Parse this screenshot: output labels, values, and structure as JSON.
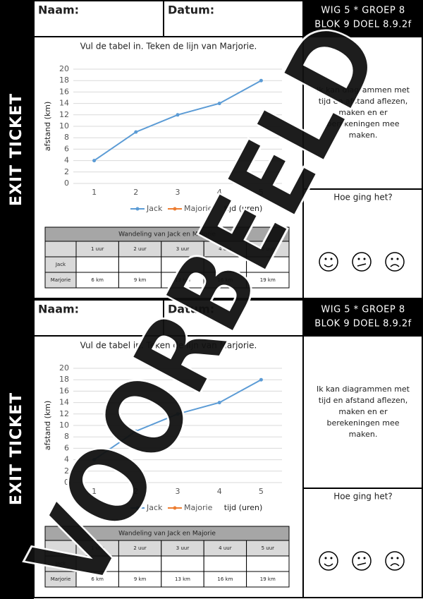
{
  "tickets": [
    {
      "exit_label": "EXIT TICKET",
      "name_label": "Naam:",
      "date_label": "Datum:",
      "code_lines": [
        "WIG 5 * GROEP 8",
        "BLOK 9 DOEL 8.9.2f"
      ],
      "goal_lines": [
        "Ik kan diagrammen met",
        "tijd en afstand aflezen,",
        "maken en er",
        "berekeningen mee",
        "maken."
      ],
      "feeling": "Hoe ging het?",
      "chart": {
        "type": "line",
        "title": "Vul de tabel in. Teken de lijn van Marjorie.",
        "categories": [
          1,
          2,
          3,
          4,
          5
        ],
        "series": [
          {
            "name": "Jack",
            "color": "#5b9bd5",
            "values": [
              4,
              9,
              12,
              14,
              18
            ]
          },
          {
            "name": "Majorie",
            "color": "#ed7d31",
            "values": [
              null,
              null,
              null,
              null,
              null
            ]
          }
        ],
        "ylim": [
          0,
          20
        ],
        "yticks": [
          0,
          2,
          4,
          6,
          8,
          10,
          12,
          14,
          16,
          18,
          20
        ],
        "grid": true,
        "y_label": "afstand (km)",
        "x_label": "tijd (uren)"
      },
      "table": {
        "title": "Wandeling van Jack en Majorie",
        "columns": [
          "1 uur",
          "2 uur",
          "3 uur",
          "4 uur",
          "5 uur"
        ],
        "rows": [
          {
            "label": "Jack"
          },
          {
            "label": "Marjorie",
            "cells": [
              "6 km",
              "9 km",
              "13 km",
              "16 km",
              "19 km"
            ]
          }
        ]
      }
    },
    {
      "exit_label": "EXIT TICKET",
      "name_label": "Naam:",
      "date_label": "Datum:",
      "code_lines": [
        "WIG 5 * GROEP 8",
        "BLOK 9 DOEL 8.9.2f"
      ],
      "goal_lines": [
        "Ik kan diagrammen met",
        "tijd en afstand aflezen,",
        "maken en er",
        "berekeningen mee",
        "maken."
      ],
      "feeling": "Hoe ging het?",
      "chart": {
        "type": "line",
        "title": "Vul de tabel in. Teken de lijn van Marjorie.",
        "categories": [
          1,
          2,
          3,
          4,
          5
        ],
        "series": [
          {
            "name": "Jack",
            "color": "#5b9bd5",
            "values": [
              4,
              9,
              12,
              14,
              18
            ]
          },
          {
            "name": "Majorie",
            "color": "#ed7d31",
            "values": [
              null,
              null,
              null,
              null,
              null
            ]
          }
        ],
        "ylim": [
          0,
          20
        ],
        "yticks": [
          0,
          2,
          4,
          6,
          8,
          10,
          12,
          14,
          16,
          18,
          20
        ],
        "grid": true,
        "y_label": "afstand (km)",
        "x_label": "tijd (uren)"
      },
      "table": {
        "title": "Wandeling van Jack en Majorie",
        "columns": [
          "1 uur",
          "2 uur",
          "3 uur",
          "4 uur",
          "5 uur"
        ],
        "rows": [
          {
            "label": "Jack"
          },
          {
            "label": "Marjorie",
            "cells": [
              "6 km",
              "9 km",
              "13 km",
              "16 km",
              "19 km"
            ]
          }
        ]
      }
    }
  ],
  "watermark": "VOORBEELD"
}
